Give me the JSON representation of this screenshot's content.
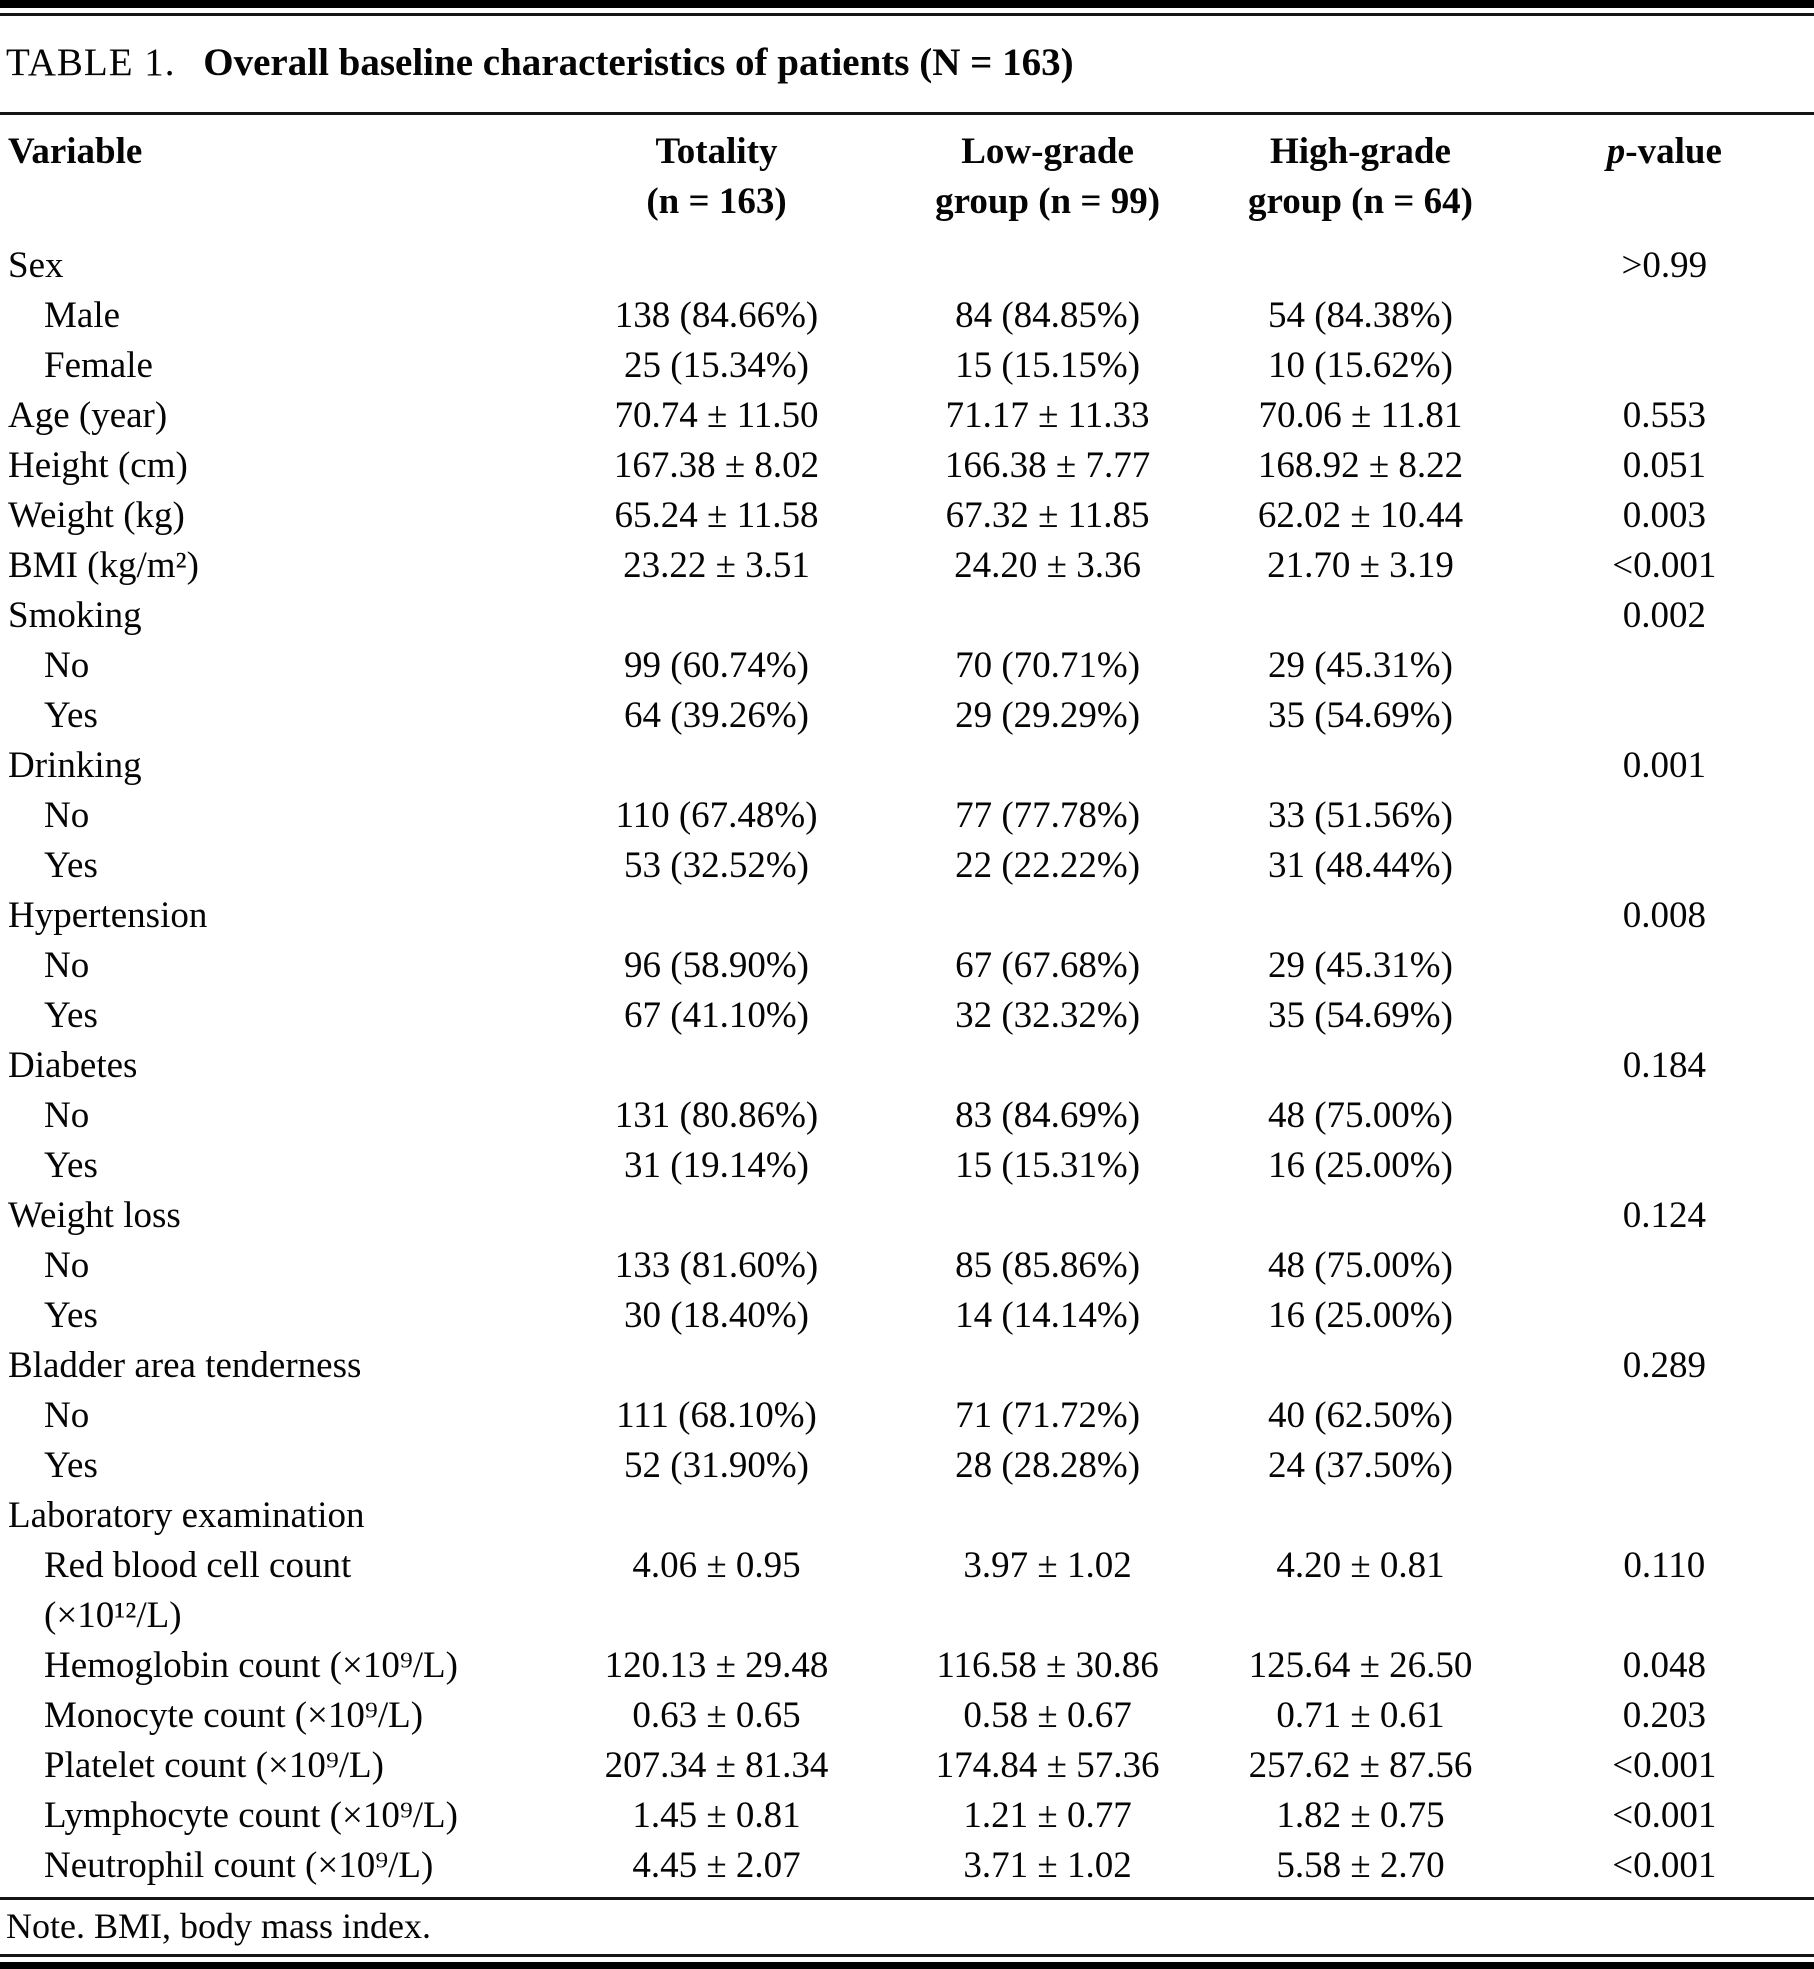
{
  "title": {
    "label": "TABLE 1.",
    "text": "Overall baseline characteristics of patients (N = 163)"
  },
  "colors": {
    "background": "#ffffff",
    "text": "#050505",
    "rule": "#000000"
  },
  "table": {
    "header": {
      "variable": "Variable",
      "totality": "Totality\n(n = 163)",
      "low_grade": "Low-grade\ngroup (n = 99)",
      "high_grade": "High-grade\ngroup (n = 64)",
      "p_italic": "p",
      "p_rest": "-value"
    },
    "rows": [
      {
        "label": "Sex",
        "indent": false,
        "totality": "",
        "low": "",
        "high": "",
        "p": ">0.99"
      },
      {
        "label": "Male",
        "indent": true,
        "totality": "138 (84.66%)",
        "low": "84 (84.85%)",
        "high": "54 (84.38%)",
        "p": ""
      },
      {
        "label": "Female",
        "indent": true,
        "totality": "25 (15.34%)",
        "low": "15 (15.15%)",
        "high": "10 (15.62%)",
        "p": ""
      },
      {
        "label": "Age (year)",
        "indent": false,
        "totality": "70.74 ± 11.50",
        "low": "71.17 ± 11.33",
        "high": "70.06 ± 11.81",
        "p": "0.553"
      },
      {
        "label": "Height (cm)",
        "indent": false,
        "totality": "167.38 ± 8.02",
        "low": "166.38 ± 7.77",
        "high": "168.92 ± 8.22",
        "p": "0.051"
      },
      {
        "label": "Weight (kg)",
        "indent": false,
        "totality": "65.24 ± 11.58",
        "low": "67.32 ± 11.85",
        "high": "62.02 ± 10.44",
        "p": "0.003"
      },
      {
        "label": "BMI (kg/m²)",
        "indent": false,
        "totality": "23.22 ± 3.51",
        "low": "24.20 ± 3.36",
        "high": "21.70 ± 3.19",
        "p": "<0.001"
      },
      {
        "label": "Smoking",
        "indent": false,
        "totality": "",
        "low": "",
        "high": "",
        "p": "0.002"
      },
      {
        "label": "No",
        "indent": true,
        "totality": "99 (60.74%)",
        "low": "70 (70.71%)",
        "high": "29 (45.31%)",
        "p": ""
      },
      {
        "label": "Yes",
        "indent": true,
        "totality": "64 (39.26%)",
        "low": "29 (29.29%)",
        "high": "35 (54.69%)",
        "p": ""
      },
      {
        "label": "Drinking",
        "indent": false,
        "totality": "",
        "low": "",
        "high": "",
        "p": "0.001"
      },
      {
        "label": "No",
        "indent": true,
        "totality": "110 (67.48%)",
        "low": "77 (77.78%)",
        "high": "33 (51.56%)",
        "p": ""
      },
      {
        "label": "Yes",
        "indent": true,
        "totality": "53 (32.52%)",
        "low": "22 (22.22%)",
        "high": "31 (48.44%)",
        "p": ""
      },
      {
        "label": "Hypertension",
        "indent": false,
        "totality": "",
        "low": "",
        "high": "",
        "p": "0.008"
      },
      {
        "label": "No",
        "indent": true,
        "totality": "96 (58.90%)",
        "low": "67 (67.68%)",
        "high": "29 (45.31%)",
        "p": ""
      },
      {
        "label": "Yes",
        "indent": true,
        "totality": "67 (41.10%)",
        "low": "32 (32.32%)",
        "high": "35 (54.69%)",
        "p": ""
      },
      {
        "label": "Diabetes",
        "indent": false,
        "totality": "",
        "low": "",
        "high": "",
        "p": "0.184"
      },
      {
        "label": "No",
        "indent": true,
        "totality": "131 (80.86%)",
        "low": "83 (84.69%)",
        "high": "48 (75.00%)",
        "p": ""
      },
      {
        "label": "Yes",
        "indent": true,
        "totality": "31 (19.14%)",
        "low": "15 (15.31%)",
        "high": "16 (25.00%)",
        "p": ""
      },
      {
        "label": "Weight loss",
        "indent": false,
        "totality": "",
        "low": "",
        "high": "",
        "p": "0.124"
      },
      {
        "label": "No",
        "indent": true,
        "totality": "133 (81.60%)",
        "low": "85 (85.86%)",
        "high": "48 (75.00%)",
        "p": ""
      },
      {
        "label": "Yes",
        "indent": true,
        "totality": "30 (18.40%)",
        "low": "14 (14.14%)",
        "high": "16 (25.00%)",
        "p": ""
      },
      {
        "label": "Bladder area tenderness",
        "indent": false,
        "totality": "",
        "low": "",
        "high": "",
        "p": "0.289"
      },
      {
        "label": "No",
        "indent": true,
        "totality": "111 (68.10%)",
        "low": "71 (71.72%)",
        "high": "40 (62.50%)",
        "p": ""
      },
      {
        "label": "Yes",
        "indent": true,
        "totality": "52 (31.90%)",
        "low": "28 (28.28%)",
        "high": "24 (37.50%)",
        "p": ""
      },
      {
        "label": "Laboratory examination",
        "indent": false,
        "totality": "",
        "low": "",
        "high": "",
        "p": ""
      },
      {
        "label": "Red blood cell count\n(×10¹²/L)",
        "indent": true,
        "totality": "4.06 ± 0.95",
        "low": "3.97 ± 1.02",
        "high": "4.20 ± 0.81",
        "p": "0.110"
      },
      {
        "label": "Hemoglobin count (×10⁹/L)",
        "indent": true,
        "totality": "120.13 ± 29.48",
        "low": "116.58 ± 30.86",
        "high": "125.64 ± 26.50",
        "p": "0.048"
      },
      {
        "label": "Monocyte count (×10⁹/L)",
        "indent": true,
        "totality": "0.63 ± 0.65",
        "low": "0.58 ± 0.67",
        "high": "0.71 ± 0.61",
        "p": "0.203"
      },
      {
        "label": "Platelet count (×10⁹/L)",
        "indent": true,
        "totality": "207.34 ± 81.34",
        "low": "174.84 ± 57.36",
        "high": "257.62 ± 87.56",
        "p": "<0.001"
      },
      {
        "label": "Lymphocyte count (×10⁹/L)",
        "indent": true,
        "totality": "1.45 ± 0.81",
        "low": "1.21 ± 0.77",
        "high": "1.82 ± 0.75",
        "p": "<0.001"
      },
      {
        "label": "Neutrophil count (×10⁹/L)",
        "indent": true,
        "totality": "4.45 ± 2.07",
        "low": "3.71 ± 1.02",
        "high": "5.58 ± 2.70",
        "p": "<0.001"
      }
    ]
  },
  "note": "Note. BMI, body mass index."
}
